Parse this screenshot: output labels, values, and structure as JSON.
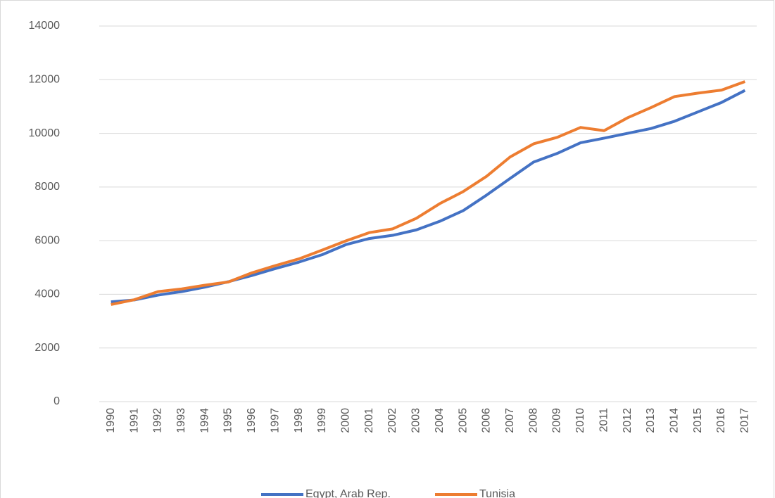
{
  "chart_data": {
    "type": "line",
    "categories": [
      "1990",
      "1991",
      "1992",
      "1993",
      "1994",
      "1995",
      "1996",
      "1997",
      "1998",
      "1999",
      "2000",
      "2001",
      "2002",
      "2003",
      "2004",
      "2005",
      "2006",
      "2007",
      "2008",
      "2009",
      "2010",
      "2011",
      "2012",
      "2013",
      "2014",
      "2015",
      "2016",
      "2017"
    ],
    "series": [
      {
        "name": "Egypt, Arab Rep.",
        "color": "#4472c4",
        "values": [
          3720,
          3790,
          3970,
          4100,
          4270,
          4470,
          4700,
          4960,
          5200,
          5480,
          5850,
          6080,
          6200,
          6400,
          6720,
          7120,
          7700,
          8320,
          8930,
          9250,
          9650,
          9820,
          10000,
          10180,
          10450,
          10800,
          11150,
          11600
        ]
      },
      {
        "name": "Tunisia",
        "color": "#ed7d31",
        "values": [
          3620,
          3800,
          4100,
          4200,
          4340,
          4460,
          4800,
          5070,
          5320,
          5650,
          5990,
          6300,
          6440,
          6830,
          7380,
          7830,
          8400,
          9120,
          9610,
          9850,
          10220,
          10100,
          10580,
          10960,
          11370,
          11500,
          11610,
          11930
        ]
      }
    ],
    "ylim": [
      0,
      14000
    ],
    "yticks": [
      0,
      2000,
      4000,
      6000,
      8000,
      10000,
      12000,
      14000
    ],
    "grid": true,
    "legend": "bottom"
  }
}
